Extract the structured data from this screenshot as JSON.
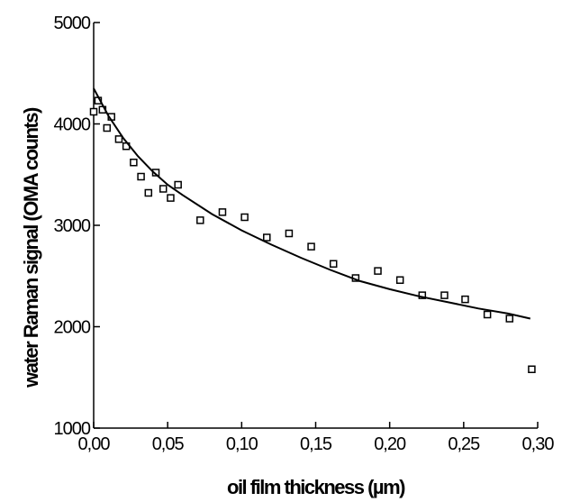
{
  "chart_data": {
    "type": "scatter",
    "xlabel": "oil film thickness (µm)",
    "ylabel": "water Raman signal (OMA counts)",
    "xlim": [
      0.0,
      0.3
    ],
    "ylim": [
      1000,
      5000
    ],
    "x_ticks": [
      "0,00",
      "0,05",
      "0,10",
      "0,15",
      "0,20",
      "0,25",
      "0,30"
    ],
    "y_ticks": [
      "1000",
      "2000",
      "3000",
      "4000",
      "5000"
    ],
    "x_tick_values": [
      0.0,
      0.05,
      0.1,
      0.15,
      0.2,
      0.25,
      0.3
    ],
    "y_tick_values": [
      1000,
      2000,
      3000,
      4000,
      5000
    ],
    "grid": false,
    "series": [
      {
        "kind": "points",
        "marker": "square",
        "x": [
          0.0,
          0.003,
          0.006,
          0.009,
          0.012,
          0.017,
          0.022,
          0.027,
          0.032,
          0.037,
          0.042,
          0.047,
          0.052,
          0.057,
          0.072,
          0.087,
          0.102,
          0.117,
          0.132,
          0.147,
          0.162,
          0.177,
          0.192,
          0.207,
          0.222,
          0.237,
          0.251,
          0.266,
          0.281,
          0.296
        ],
        "y": [
          4120,
          4230,
          4140,
          3960,
          4070,
          3850,
          3780,
          3620,
          3480,
          3320,
          3520,
          3360,
          3270,
          3400,
          3050,
          3130,
          3080,
          2880,
          2920,
          2790,
          2620,
          2480,
          2550,
          2460,
          2310,
          2310,
          2270,
          2120,
          2080,
          1580
        ]
      },
      {
        "kind": "line",
        "marker": "none",
        "x": [
          0.0,
          0.01,
          0.02,
          0.03,
          0.04,
          0.05,
          0.06,
          0.08,
          0.1,
          0.12,
          0.14,
          0.16,
          0.18,
          0.2,
          0.22,
          0.24,
          0.26,
          0.28,
          0.295
        ],
        "y": [
          4350,
          4080,
          3860,
          3680,
          3530,
          3400,
          3300,
          3110,
          2950,
          2810,
          2680,
          2560,
          2450,
          2370,
          2300,
          2240,
          2180,
          2130,
          2080
        ]
      }
    ]
  }
}
